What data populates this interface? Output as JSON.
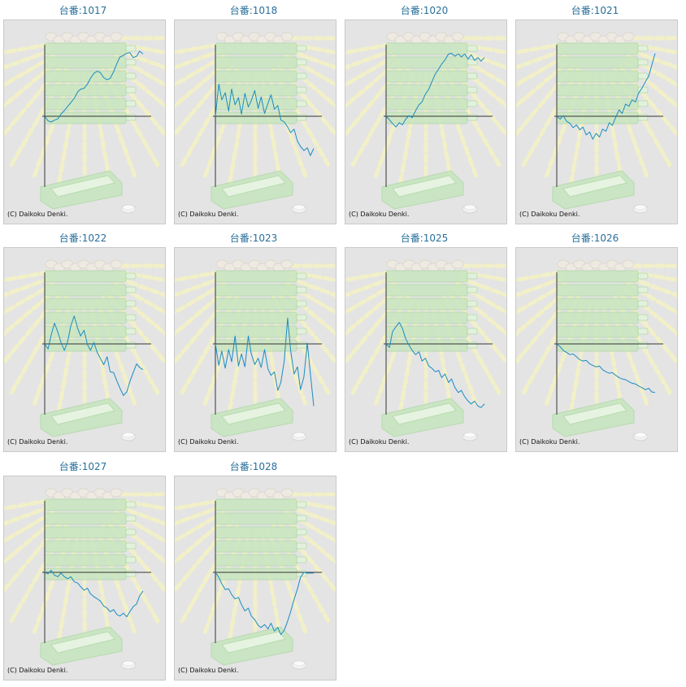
{
  "copyright": "(C) Daikoku Denki.",
  "colors": {
    "line": "#1a8cc0",
    "axis": "#333333",
    "title": "#2a6f9a",
    "panel_bg": "#e4e4e4",
    "watermark_green": "#c8e6c0",
    "watermark_ray": "#f3f1c6"
  },
  "chart_data": [
    {
      "type": "line",
      "title": "台番:1017",
      "x": [
        0,
        7,
        13,
        20,
        27,
        33,
        40,
        47,
        53,
        60,
        67,
        73,
        80,
        87,
        93,
        100,
        107,
        113,
        120,
        127,
        133,
        140,
        147,
        153,
        160,
        167,
        173,
        180,
        187,
        193,
        200
      ],
      "y": [
        0,
        -650,
        -800,
        -550,
        -350,
        300,
        800,
        1400,
        1900,
        2500,
        3400,
        3800,
        3900,
        4500,
        5300,
        6000,
        6300,
        6100,
        5400,
        5100,
        5300,
        6200,
        7400,
        8300,
        8500,
        8800,
        8900,
        8200,
        8400,
        9100,
        8700
      ]
    },
    {
      "type": "line",
      "title": "台番:1018",
      "x": [
        0,
        7,
        13,
        20,
        27,
        33,
        40,
        47,
        53,
        60,
        67,
        73,
        80,
        87,
        93,
        100,
        107,
        113,
        120,
        127,
        133,
        140,
        147,
        153,
        160,
        167,
        173,
        180,
        187,
        193,
        200
      ],
      "y": [
        0,
        4500,
        2300,
        3300,
        700,
        3800,
        1600,
        2600,
        300,
        3200,
        1300,
        2200,
        3600,
        1100,
        2700,
        400,
        1800,
        3000,
        1000,
        1500,
        -500,
        -800,
        -1500,
        -2300,
        -1800,
        -3500,
        -4200,
        -4800,
        -4400,
        -5500,
        -4500
      ]
    },
    {
      "type": "line",
      "title": "台番:1020",
      "x": [
        0,
        7,
        13,
        20,
        27,
        33,
        40,
        47,
        53,
        60,
        67,
        73,
        80,
        87,
        93,
        100,
        107,
        113,
        120,
        127,
        133,
        140,
        147,
        153,
        160,
        167,
        173,
        180,
        187,
        193,
        200
      ],
      "y": [
        0,
        -500,
        -1000,
        -1500,
        -900,
        -1200,
        -400,
        100,
        -200,
        800,
        1600,
        2000,
        3100,
        3800,
        4800,
        5900,
        6600,
        7300,
        7900,
        8700,
        8800,
        8400,
        8700,
        8300,
        8700,
        8000,
        8600,
        7800,
        8200,
        7700,
        8200
      ]
    },
    {
      "type": "line",
      "title": "台番:1021",
      "x": [
        0,
        7,
        13,
        20,
        27,
        33,
        40,
        47,
        53,
        60,
        67,
        73,
        80,
        87,
        93,
        100,
        107,
        113,
        120,
        127,
        133,
        140,
        147,
        153,
        160,
        167,
        173,
        180,
        187,
        193,
        200
      ],
      "y": [
        0,
        -400,
        100,
        -700,
        -1000,
        -1600,
        -1200,
        -1900,
        -1500,
        -2600,
        -2200,
        -3200,
        -2400,
        -2900,
        -1800,
        -2100,
        -900,
        -1300,
        -100,
        900,
        400,
        1700,
        1400,
        2300,
        2000,
        3300,
        3900,
        4800,
        5600,
        7100,
        8800
      ]
    },
    {
      "type": "line",
      "title": "台番:1022",
      "x": [
        0,
        7,
        13,
        20,
        27,
        33,
        40,
        47,
        53,
        60,
        67,
        73,
        80,
        87,
        93,
        100,
        107,
        113,
        120,
        127,
        133,
        140,
        147,
        153,
        160,
        167,
        173,
        180,
        187,
        193,
        200
      ],
      "y": [
        0,
        -700,
        1200,
        2900,
        1600,
        200,
        -900,
        400,
        2500,
        3900,
        2200,
        1100,
        1900,
        -100,
        -900,
        200,
        -1200,
        -2000,
        -2900,
        -1800,
        -3900,
        -4000,
        -5200,
        -6200,
        -7200,
        -6700,
        -5300,
        -4000,
        -2800,
        -3300,
        -3600
      ]
    },
    {
      "type": "line",
      "title": "台番:1023",
      "x": [
        0,
        7,
        13,
        20,
        27,
        33,
        40,
        47,
        53,
        60,
        67,
        73,
        80,
        87,
        93,
        100,
        107,
        113,
        120,
        127,
        133,
        140,
        147,
        153,
        160,
        167,
        173,
        180,
        187,
        193,
        200
      ],
      "y": [
        0,
        -3000,
        -1000,
        -3400,
        -800,
        -2500,
        1100,
        -3100,
        -1400,
        -3200,
        1100,
        -1400,
        -2900,
        -2000,
        -3300,
        -800,
        -3500,
        -4400,
        -3900,
        -6500,
        -5400,
        -2400,
        3600,
        -900,
        -4200,
        -3200,
        -6400,
        -4600,
        100,
        -4100,
        -8700
      ]
    },
    {
      "type": "line",
      "title": "台番:1025",
      "x": [
        0,
        7,
        13,
        20,
        27,
        33,
        40,
        47,
        53,
        60,
        67,
        73,
        80,
        87,
        93,
        100,
        107,
        113,
        120,
        127,
        133,
        140,
        147,
        153,
        160,
        167,
        173,
        180,
        187,
        193,
        200
      ],
      "y": [
        0,
        -500,
        1700,
        2400,
        3000,
        2200,
        700,
        -200,
        -900,
        -1500,
        -1100,
        -2400,
        -2000,
        -3100,
        -3400,
        -3900,
        -3700,
        -4700,
        -4200,
        -5400,
        -4900,
        -6100,
        -6800,
        -6500,
        -7400,
        -8000,
        -8400,
        -8000,
        -8700,
        -8900,
        -8400
      ]
    },
    {
      "type": "line",
      "title": "台番:1026",
      "x": [
        0,
        7,
        13,
        20,
        27,
        33,
        40,
        47,
        53,
        60,
        67,
        73,
        80,
        87,
        93,
        100,
        107,
        113,
        120,
        127,
        133,
        140,
        147,
        153,
        160,
        167,
        173,
        180,
        187,
        193,
        200
      ],
      "y": [
        0,
        -400,
        -900,
        -1200,
        -1500,
        -1400,
        -1800,
        -2200,
        -2400,
        -2300,
        -2800,
        -3000,
        -3200,
        -3100,
        -3600,
        -3900,
        -4100,
        -4000,
        -4400,
        -4700,
        -4900,
        -5000,
        -5300,
        -5500,
        -5600,
        -5900,
        -6100,
        -6400,
        -6200,
        -6700,
        -6800
      ]
    },
    {
      "type": "line",
      "title": "台番:1027",
      "x": [
        0,
        7,
        13,
        20,
        27,
        33,
        40,
        47,
        53,
        60,
        67,
        73,
        80,
        87,
        93,
        100,
        107,
        113,
        120,
        127,
        133,
        140,
        147,
        153,
        160,
        167,
        173,
        180,
        187,
        193,
        200
      ],
      "y": [
        0,
        -200,
        300,
        -400,
        -600,
        -100,
        -600,
        -900,
        -600,
        -1300,
        -1500,
        -2000,
        -2500,
        -2200,
        -3000,
        -3400,
        -3700,
        -4000,
        -4700,
        -5000,
        -5500,
        -5200,
        -5900,
        -6100,
        -5700,
        -6200,
        -5500,
        -4800,
        -4400,
        -3300,
        -2600
      ]
    },
    {
      "type": "line",
      "title": "台番:1028",
      "x": [
        0,
        7,
        13,
        20,
        27,
        33,
        40,
        47,
        53,
        60,
        67,
        73,
        80,
        87,
        93,
        100,
        107,
        113,
        120,
        127,
        133,
        140,
        147,
        153,
        160,
        167,
        173,
        180,
        187,
        193,
        200
      ],
      "y": [
        0,
        -700,
        -1600,
        -2400,
        -2300,
        -3100,
        -3700,
        -3500,
        -4500,
        -5400,
        -5000,
        -6100,
        -6600,
        -7400,
        -7700,
        -7300,
        -7900,
        -7100,
        -8200,
        -7700,
        -8700,
        -8100,
        -6800,
        -5500,
        -3800,
        -2300,
        -700,
        0,
        -100,
        -100,
        -100
      ]
    }
  ]
}
